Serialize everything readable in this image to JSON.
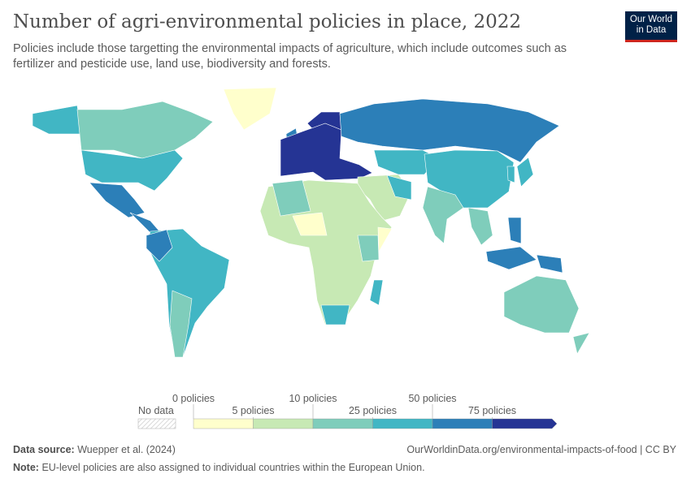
{
  "header": {
    "title": "Number of agri-environmental policies in place, 2022",
    "subtitle": "Policies include those targetting the environmental impacts of agriculture, which include outcomes such as fertilizer and pesticide use, land use, biodiversity and forests.",
    "logo": "Our World in Data"
  },
  "chart_data": {
    "type": "choropleth",
    "title": "Number of agri-environmental policies in place, 2022",
    "year": 2022,
    "legend": {
      "no_data_label": "No data",
      "thresholds": [
        "0 policies",
        "5 policies",
        "10 policies",
        "25 policies",
        "50 policies",
        "75 policies"
      ],
      "colors": [
        "#ffffcc",
        "#c7e9b4",
        "#7fcdbb",
        "#41b6c4",
        "#2c7fb8",
        "#253494"
      ],
      "open_ended_top": true
    },
    "region_bins": {
      "alaska": 3,
      "canada": 2,
      "greenland": 0,
      "usa": 3,
      "mexico": 4,
      "central_america": 4,
      "south_america": 3,
      "colombia_ecuador": 4,
      "southern_cone": 2,
      "uk": 4,
      "europe": 5,
      "scandinavia": 5,
      "russia": 4,
      "central_asia": 3,
      "china": 3,
      "middle_east": 1,
      "iran": 3,
      "india": 2,
      "se_asia": 2,
      "indonesia": 4,
      "philippines": 4,
      "papua": 4,
      "japan": 3,
      "korea": 3,
      "africa": 1,
      "north_africa": 2,
      "sahel": 0,
      "east_africa": 2,
      "horn": 0,
      "south_africa": 3,
      "madagascar": 3,
      "australia": 2,
      "new_zealand": 2
    }
  },
  "footer": {
    "source_label": "Data source:",
    "source": "Wuepper et al. (2024)",
    "url": "OurWorldinData.org/environmental-impacts-of-food | CC BY",
    "note_label": "Note:",
    "note": "EU-level policies are also assigned to individual countries within the European Union."
  }
}
